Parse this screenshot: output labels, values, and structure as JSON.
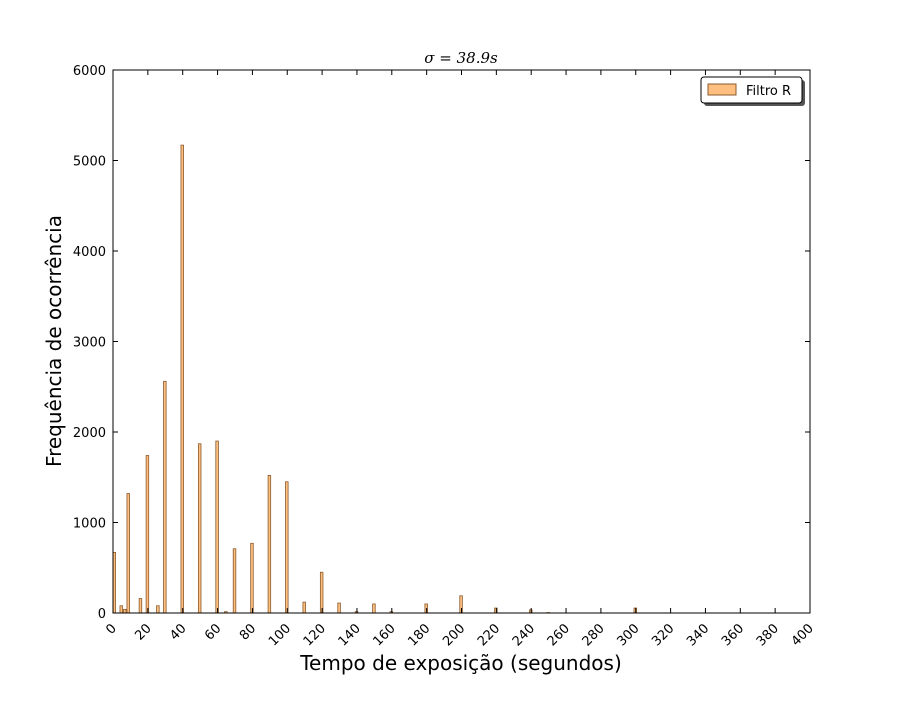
{
  "chart_data": {
    "type": "bar",
    "title": "σ = 38.9s",
    "xlabel": "Tempo de exposição (segundos)",
    "ylabel": "Frequência de ocorrência",
    "xlim": [
      0,
      400
    ],
    "ylim": [
      0,
      6000
    ],
    "xticks": [
      0,
      20,
      40,
      60,
      80,
      100,
      120,
      140,
      160,
      180,
      200,
      220,
      240,
      260,
      280,
      300,
      320,
      340,
      360,
      380,
      400
    ],
    "yticks": [
      0,
      1000,
      2000,
      3000,
      4000,
      5000,
      6000
    ],
    "grid": false,
    "legend_position": "top-right",
    "colors": {
      "bar_fill": "#ffbf80",
      "bar_edge": "#8a5a2b",
      "axes": "#000000",
      "background": "#ffffff"
    },
    "series": [
      {
        "name": "Filtro R",
        "bins": [
          {
            "x": 0,
            "y": 670
          },
          {
            "x": 4,
            "y": 80
          },
          {
            "x": 6,
            "y": 40
          },
          {
            "x": 8,
            "y": 1320
          },
          {
            "x": 15,
            "y": 160
          },
          {
            "x": 19,
            "y": 1740
          },
          {
            "x": 25,
            "y": 80
          },
          {
            "x": 29,
            "y": 2560
          },
          {
            "x": 39,
            "y": 5170
          },
          {
            "x": 49,
            "y": 1870
          },
          {
            "x": 59,
            "y": 1900
          },
          {
            "x": 64,
            "y": 15
          },
          {
            "x": 69,
            "y": 710
          },
          {
            "x": 79,
            "y": 770
          },
          {
            "x": 89,
            "y": 1520
          },
          {
            "x": 99,
            "y": 1450
          },
          {
            "x": 109,
            "y": 120
          },
          {
            "x": 119,
            "y": 450
          },
          {
            "x": 129,
            "y": 110
          },
          {
            "x": 139,
            "y": 15
          },
          {
            "x": 149,
            "y": 100
          },
          {
            "x": 159,
            "y": 15
          },
          {
            "x": 179,
            "y": 100
          },
          {
            "x": 199,
            "y": 190
          },
          {
            "x": 219,
            "y": 55
          },
          {
            "x": 239,
            "y": 35
          },
          {
            "x": 249,
            "y": 5
          },
          {
            "x": 299,
            "y": 55
          }
        ]
      }
    ]
  }
}
